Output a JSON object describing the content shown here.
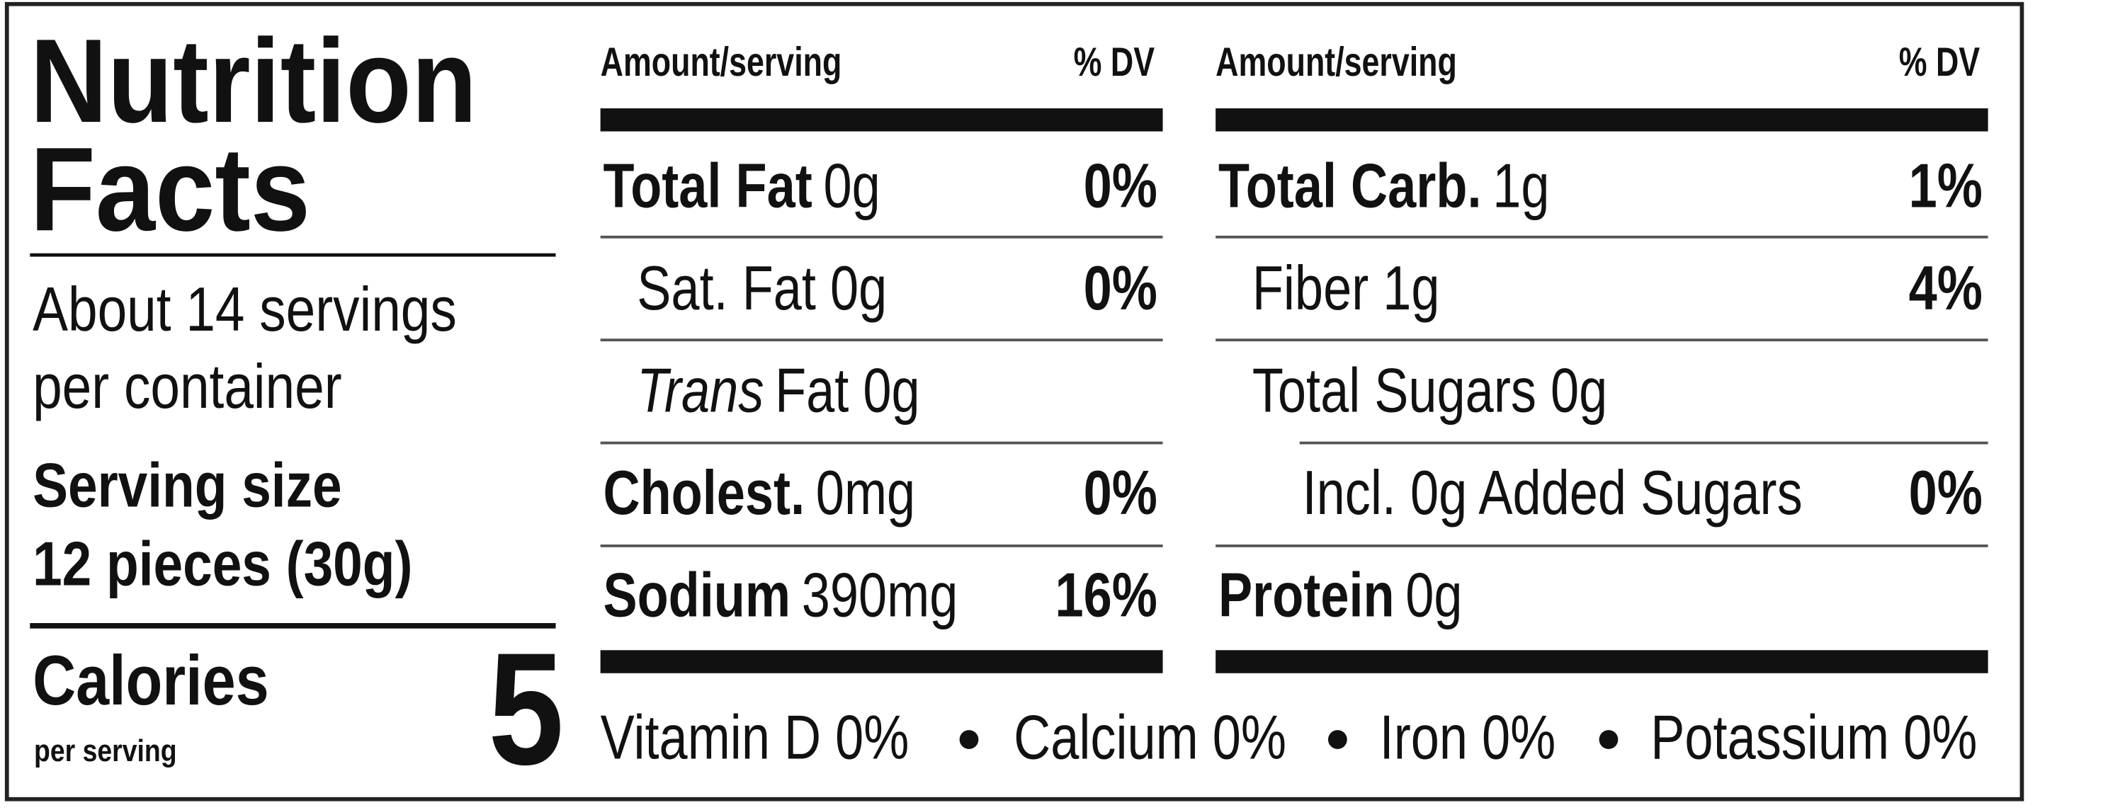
{
  "label": {
    "title": [
      "Nutrition",
      "Facts"
    ],
    "servings": [
      "About 14 servings",
      "per container"
    ],
    "serving_size": {
      "label": "Serving size",
      "value": "12 pieces (30g)"
    },
    "calories": {
      "label": "Calories",
      "sublabel": "per serving",
      "value": "5"
    },
    "columns": [
      {
        "header": {
          "amount": "Amount/serving",
          "dv": "% DV"
        },
        "rows": [
          {
            "name": "Total Fat",
            "amount": "0g",
            "dv": "0%",
            "style": "bold",
            "indent": 0
          },
          {
            "name": "Sat. Fat 0g",
            "dv": "0%",
            "style": "normal",
            "indent": 1
          },
          {
            "name": "Trans",
            "amount": "Fat 0g",
            "style": "italic",
            "indent": 1
          },
          {
            "name": "Cholest.",
            "amount": "0mg",
            "dv": "0%",
            "style": "bold",
            "indent": 0
          },
          {
            "name": "Sodium",
            "amount": "390mg",
            "dv": "16%",
            "style": "bold",
            "indent": 0
          }
        ]
      },
      {
        "header": {
          "amount": "Amount/serving",
          "dv": "% DV"
        },
        "rows": [
          {
            "name": "Total Carb.",
            "amount": "1g",
            "dv": "1%",
            "style": "bold",
            "indent": 0
          },
          {
            "name": "Fiber 1g",
            "dv": "4%",
            "style": "normal",
            "indent": 1
          },
          {
            "name": "Total Sugars 0g",
            "style": "normal",
            "indent": 1
          },
          {
            "name": "Incl. 0g Added Sugars",
            "dv": "0%",
            "style": "normal",
            "indent": 2
          },
          {
            "name": "Protein",
            "amount": "0g",
            "style": "bold",
            "indent": 0
          }
        ]
      }
    ],
    "vitamins": [
      "Vitamin D 0%",
      "Calcium 0%",
      "Iron 0%",
      "Potassium 0%"
    ]
  }
}
